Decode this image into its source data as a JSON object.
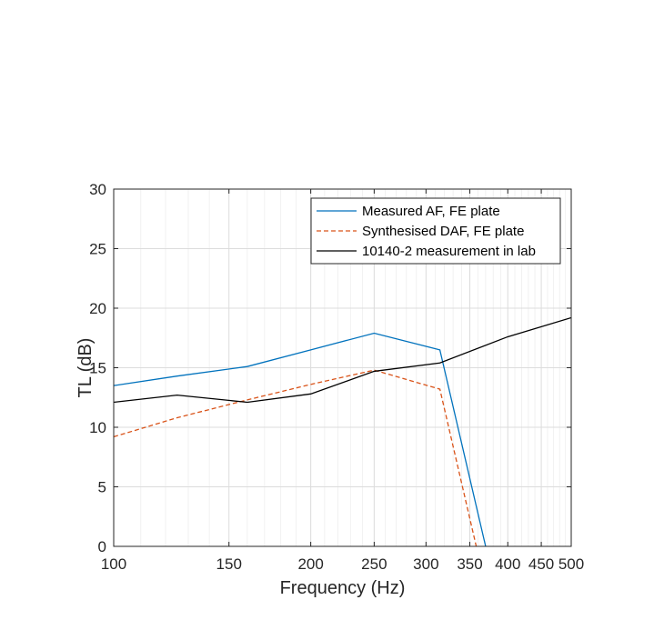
{
  "chart_data": {
    "type": "line",
    "title": "",
    "xlabel": "Frequency (Hz)",
    "ylabel": "TL (dB)",
    "xscale": "log",
    "xlim": [
      100,
      500
    ],
    "ylim": [
      0,
      30
    ],
    "xticks": [
      100,
      150,
      200,
      250,
      300,
      350,
      400,
      450,
      500
    ],
    "xtick_labels": [
      "100",
      "150",
      "200",
      "250",
      "300",
      "350",
      "400",
      "450",
      "500"
    ],
    "yticks": [
      0,
      5,
      10,
      15,
      20,
      25,
      30
    ],
    "ytick_labels": [
      "0",
      "5",
      "10",
      "15",
      "20",
      "25",
      "30"
    ],
    "grid": true,
    "legend_position": "top-right",
    "series": [
      {
        "name": "Measured AF, FE plate",
        "color": "#0072BD",
        "dash": "solid",
        "x": [
          100,
          125,
          160,
          200,
          250,
          315,
          370
        ],
        "y": [
          13.5,
          14.3,
          15.1,
          16.5,
          17.9,
          16.5,
          0
        ]
      },
      {
        "name": "Synthesised DAF, FE plate",
        "color": "#D95319",
        "dash": "dashed",
        "x": [
          100,
          125,
          160,
          200,
          250,
          315,
          358
        ],
        "y": [
          9.2,
          10.8,
          12.3,
          13.6,
          14.8,
          13.2,
          0
        ]
      },
      {
        "name": "10140-2 measurement in lab",
        "color": "#000000",
        "dash": "solid",
        "x": [
          100,
          125,
          160,
          200,
          250,
          315,
          400,
          500
        ],
        "y": [
          12.1,
          12.7,
          12.1,
          12.8,
          14.7,
          15.4,
          17.6,
          19.2
        ]
      }
    ]
  }
}
